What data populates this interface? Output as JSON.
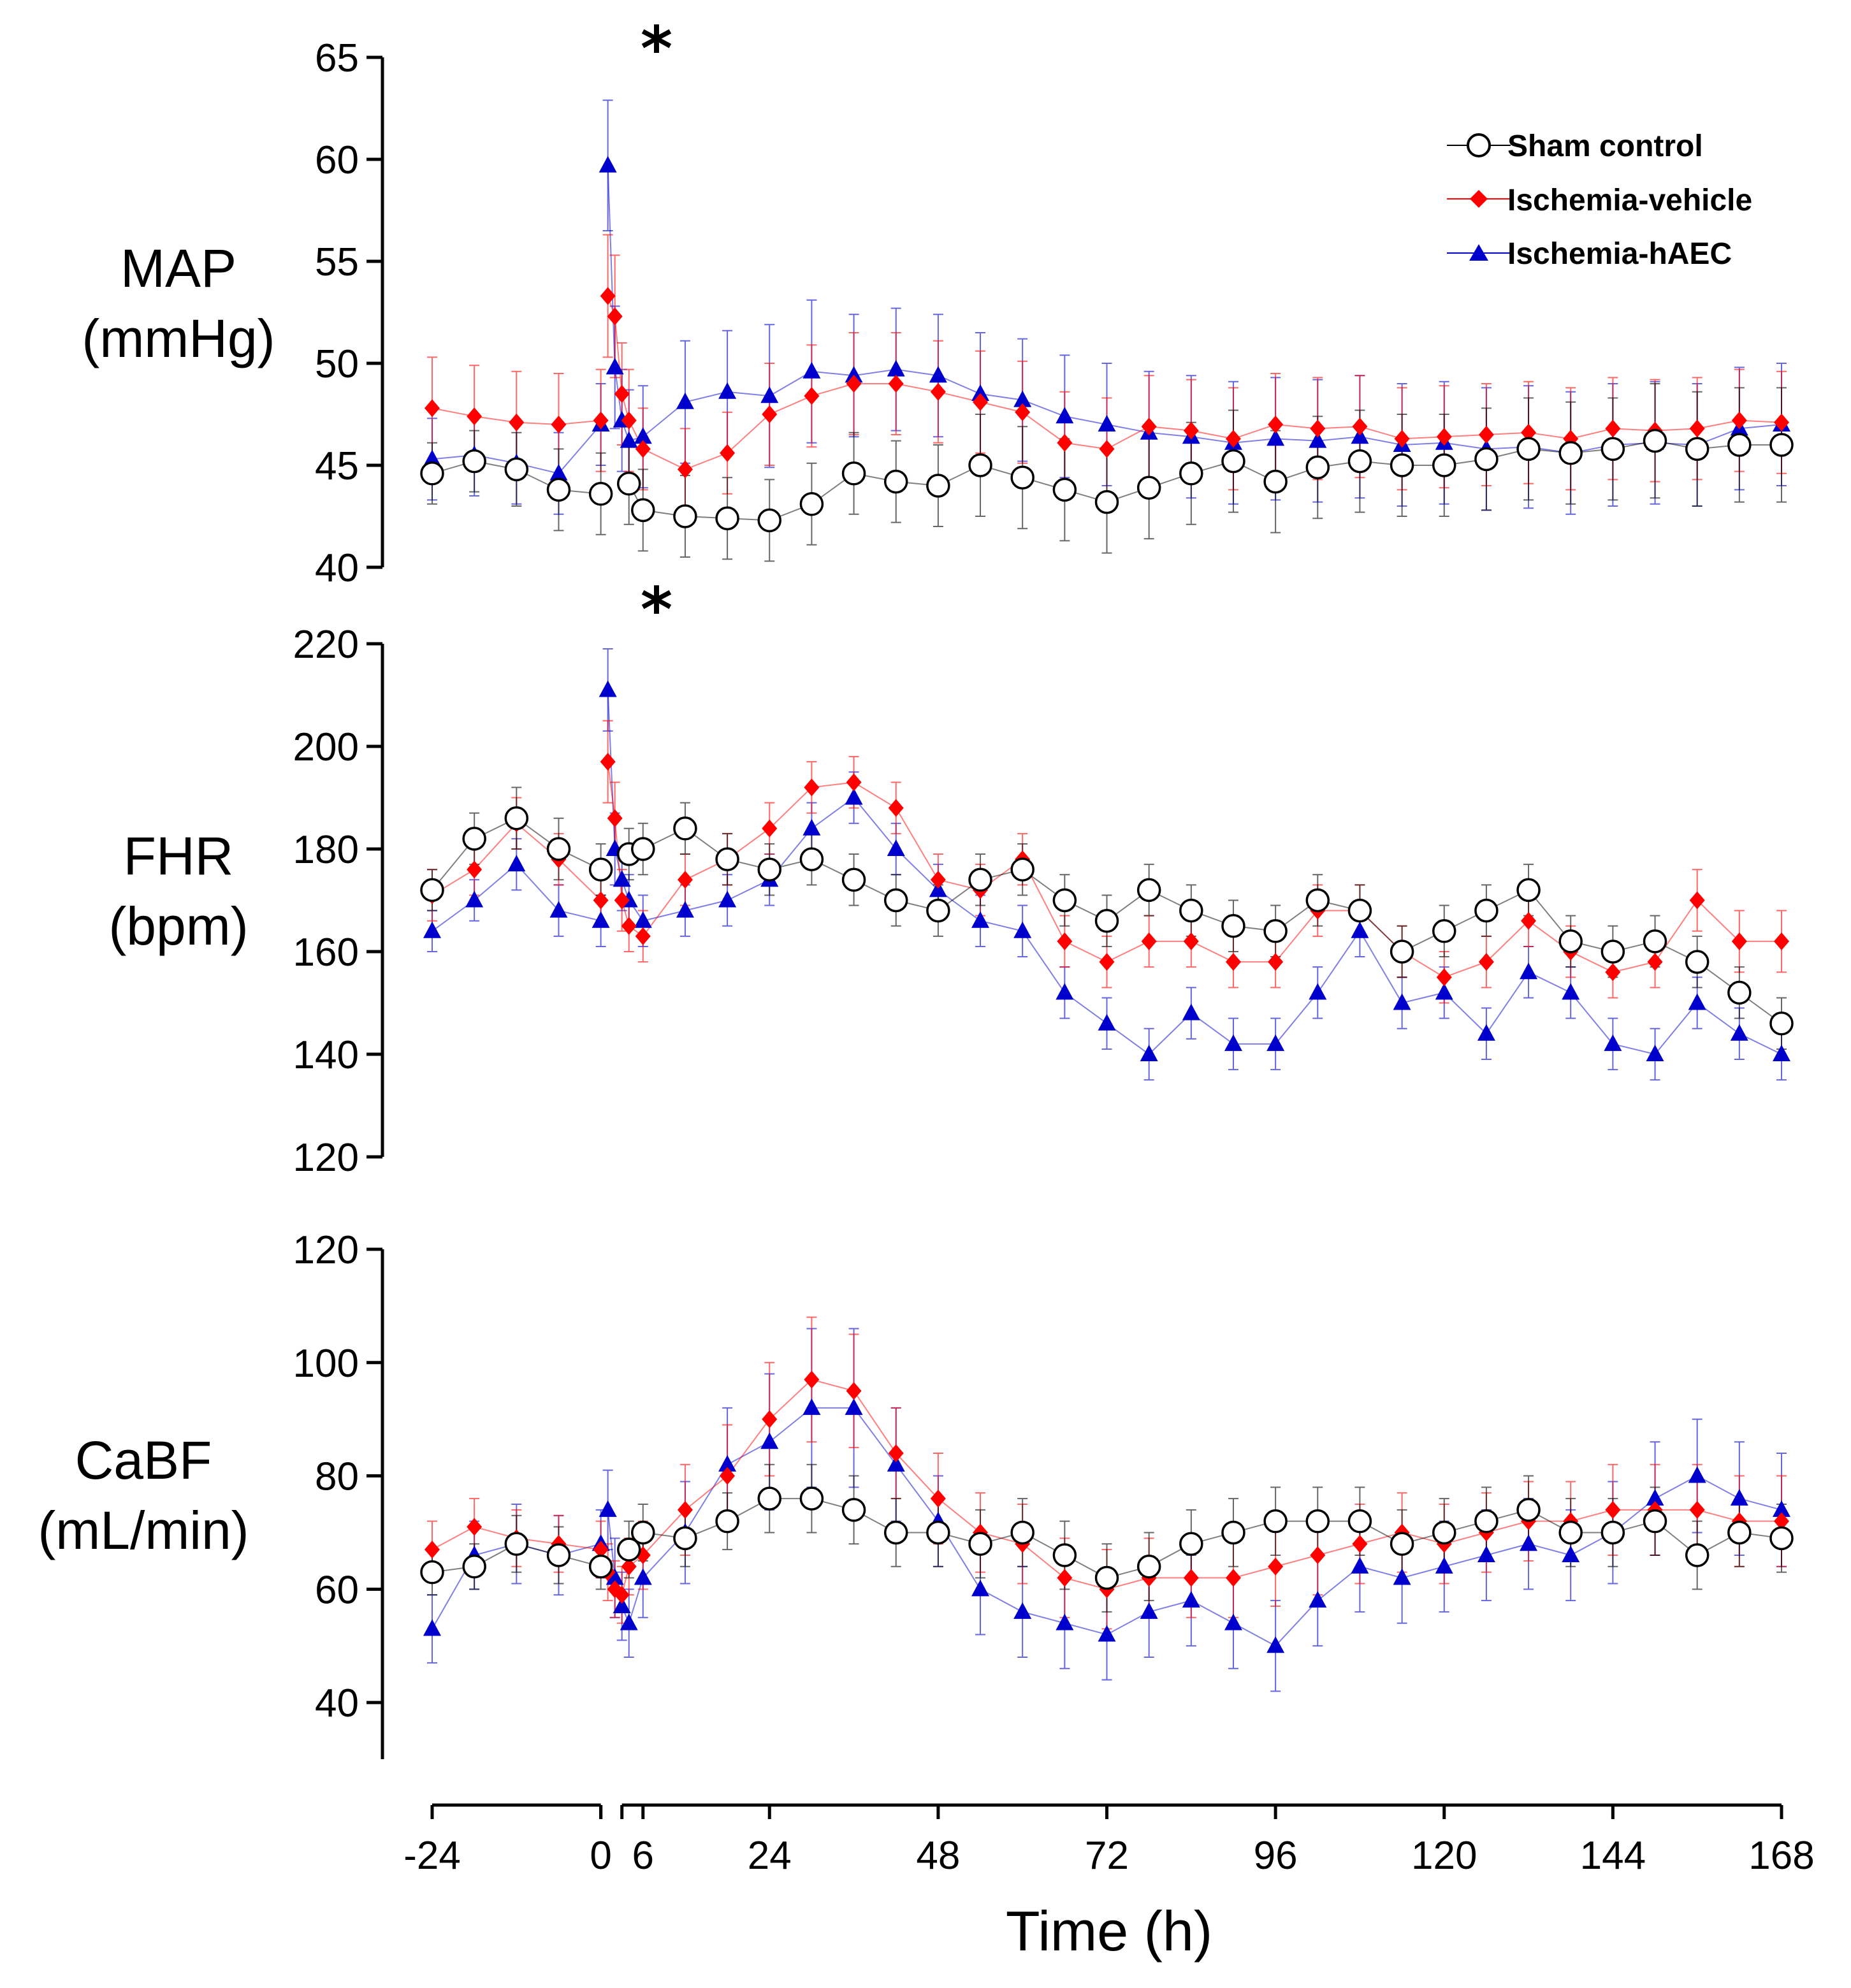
{
  "chart_data": [
    {
      "type": "scatter",
      "id": "map",
      "ylabel_lines": [
        "MAP",
        "(mmHg)"
      ],
      "ylim": [
        40,
        65
      ],
      "yticks": [
        40,
        45,
        50,
        55,
        60,
        65
      ],
      "yticklabels": [
        "40",
        "45",
        "50",
        "55",
        "60",
        "65"
      ],
      "annotation": "*",
      "series": [
        {
          "name": "Sham control",
          "color": "#000000",
          "x": [
            -24,
            -18,
            -12,
            -6,
            0,
            4,
            6,
            12,
            18,
            24,
            30,
            36,
            42,
            48,
            54,
            60,
            66,
            72,
            78,
            84,
            90,
            96,
            102,
            108,
            114,
            120,
            126,
            132,
            138,
            144,
            150,
            156,
            162,
            168
          ],
          "values": [
            44.6,
            45.2,
            44.8,
            43.8,
            43.6,
            44.1,
            42.8,
            42.5,
            42.4,
            42.3,
            43.1,
            44.6,
            44.2,
            44.0,
            45.0,
            44.4,
            43.8,
            43.2,
            43.9,
            44.6,
            45.2,
            44.2,
            44.9,
            45.2,
            45.0,
            45.0,
            45.3,
            45.8,
            45.6,
            45.8,
            46.2,
            45.8,
            46.0,
            46.0
          ],
          "err": [
            1.5,
            1.5,
            1.8,
            2.0,
            2.0,
            2.0,
            2.0,
            2.0,
            2.0,
            2.0,
            2.0,
            2.0,
            2.0,
            2.0,
            2.5,
            2.5,
            2.5,
            2.5,
            2.5,
            2.5,
            2.5,
            2.5,
            2.5,
            2.5,
            2.5,
            2.5,
            2.5,
            2.5,
            2.5,
            2.5,
            2.8,
            2.8,
            2.8,
            2.8
          ]
        },
        {
          "name": "Ischemia-vehicle",
          "color": "#ff0000",
          "x": [
            -24,
            -18,
            -12,
            -6,
            0,
            1,
            2,
            3,
            4,
            6,
            12,
            18,
            24,
            30,
            36,
            42,
            48,
            54,
            60,
            66,
            72,
            78,
            84,
            90,
            96,
            102,
            108,
            114,
            120,
            126,
            132,
            138,
            144,
            150,
            156,
            162,
            168
          ],
          "values": [
            47.8,
            47.4,
            47.1,
            47.0,
            47.2,
            53.3,
            52.3,
            48.5,
            47.2,
            45.8,
            44.8,
            45.6,
            47.5,
            48.4,
            49.0,
            49.0,
            48.6,
            48.1,
            47.6,
            46.1,
            45.8,
            46.9,
            46.7,
            46.3,
            47.0,
            46.8,
            46.9,
            46.3,
            46.4,
            46.5,
            46.6,
            46.3,
            46.8,
            46.7,
            46.8,
            47.2,
            47.1
          ],
          "err": [
            2.5,
            2.5,
            2.5,
            2.5,
            2.5,
            3.0,
            3.0,
            2.5,
            2.5,
            2.0,
            2.0,
            2.0,
            2.5,
            2.5,
            2.5,
            2.5,
            2.5,
            2.5,
            2.5,
            2.5,
            2.5,
            2.5,
            2.5,
            2.5,
            2.5,
            2.5,
            2.5,
            2.5,
            2.5,
            2.5,
            2.5,
            2.5,
            2.5,
            2.5,
            2.5,
            2.5,
            2.5
          ]
        },
        {
          "name": "Ischemia-hAEC",
          "color": "#0000cc",
          "x": [
            -24,
            -18,
            -12,
            -6,
            0,
            1,
            2,
            3,
            4,
            6,
            12,
            18,
            24,
            30,
            36,
            42,
            48,
            54,
            60,
            66,
            72,
            78,
            84,
            90,
            96,
            102,
            108,
            114,
            120,
            126,
            132,
            138,
            144,
            150,
            156,
            162,
            168
          ],
          "values": [
            45.3,
            45.5,
            45.1,
            44.6,
            47.0,
            59.7,
            49.8,
            47.2,
            46.2,
            46.4,
            48.1,
            48.6,
            48.4,
            49.6,
            49.4,
            49.7,
            49.4,
            48.5,
            48.2,
            47.4,
            47.0,
            46.6,
            46.4,
            46.1,
            46.3,
            46.2,
            46.4,
            46.0,
            46.1,
            45.8,
            45.9,
            45.6,
            46.0,
            46.1,
            46.0,
            46.8,
            47.0
          ],
          "err": [
            2.0,
            2.0,
            2.0,
            2.0,
            2.0,
            3.2,
            3.0,
            2.5,
            2.5,
            2.5,
            3.0,
            3.0,
            3.5,
            3.5,
            3.0,
            3.0,
            3.0,
            3.0,
            3.0,
            3.0,
            3.0,
            3.0,
            3.0,
            3.0,
            3.0,
            3.0,
            3.0,
            3.0,
            3.0,
            3.0,
            3.0,
            3.0,
            3.0,
            3.0,
            3.0,
            3.0,
            3.0
          ]
        }
      ]
    },
    {
      "type": "scatter",
      "id": "fhr",
      "ylabel_lines": [
        "FHR",
        "(bpm)"
      ],
      "ylim": [
        120,
        220
      ],
      "yticks": [
        120,
        140,
        160,
        180,
        200,
        220
      ],
      "yticklabels": [
        "120",
        "140",
        "160",
        "180",
        "200",
        "220"
      ],
      "annotation": "*",
      "series": [
        {
          "name": "Sham control",
          "color": "#000000",
          "x": [
            -24,
            -18,
            -12,
            -6,
            0,
            4,
            6,
            12,
            18,
            24,
            30,
            36,
            42,
            48,
            54,
            60,
            66,
            72,
            78,
            84,
            90,
            96,
            102,
            108,
            114,
            120,
            126,
            132,
            138,
            144,
            150,
            156,
            162,
            168
          ],
          "values": [
            172,
            182,
            186,
            180,
            176,
            179,
            180,
            184,
            178,
            176,
            178,
            174,
            170,
            168,
            174,
            176,
            170,
            166,
            172,
            168,
            165,
            164,
            170,
            168,
            160,
            164,
            168,
            172,
            162,
            160,
            162,
            158,
            152,
            146
          ],
          "err": [
            4,
            5,
            6,
            6,
            5,
            5,
            5,
            5,
            5,
            5,
            5,
            5,
            5,
            5,
            5,
            5,
            5,
            5,
            5,
            5,
            5,
            5,
            5,
            5,
            5,
            5,
            5,
            5,
            5,
            5,
            5,
            5,
            5,
            5
          ]
        },
        {
          "name": "Ischemia-vehicle",
          "color": "#ff0000",
          "x": [
            -24,
            -18,
            -12,
            -6,
            0,
            1,
            2,
            3,
            4,
            6,
            12,
            18,
            24,
            30,
            36,
            42,
            48,
            54,
            60,
            66,
            72,
            78,
            84,
            90,
            96,
            102,
            108,
            114,
            120,
            126,
            132,
            138,
            144,
            150,
            156,
            162,
            168
          ],
          "values": [
            171,
            176,
            185,
            178,
            170,
            197,
            186,
            170,
            165,
            163,
            174,
            178,
            184,
            192,
            193,
            188,
            174,
            172,
            178,
            162,
            158,
            162,
            162,
            158,
            158,
            168,
            168,
            160,
            155,
            158,
            166,
            160,
            156,
            158,
            170,
            162,
            162
          ],
          "err": [
            5,
            5,
            5,
            5,
            5,
            8,
            7,
            6,
            5,
            5,
            5,
            5,
            5,
            5,
            5,
            5,
            5,
            5,
            5,
            5,
            5,
            5,
            5,
            5,
            5,
            5,
            5,
            5,
            5,
            5,
            5,
            5,
            5,
            5,
            6,
            6,
            6
          ]
        },
        {
          "name": "Ischemia-hAEC",
          "color": "#0000cc",
          "x": [
            -24,
            -18,
            -12,
            -6,
            0,
            1,
            2,
            3,
            4,
            6,
            12,
            18,
            24,
            30,
            36,
            42,
            48,
            54,
            60,
            66,
            72,
            78,
            84,
            90,
            96,
            102,
            108,
            114,
            120,
            126,
            132,
            138,
            144,
            150,
            156,
            162,
            168
          ],
          "values": [
            164,
            170,
            177,
            168,
            166,
            211,
            180,
            174,
            170,
            166,
            168,
            170,
            174,
            184,
            190,
            180,
            172,
            166,
            164,
            152,
            146,
            140,
            148,
            142,
            142,
            152,
            164,
            150,
            152,
            144,
            156,
            152,
            142,
            140,
            150,
            144,
            140
          ],
          "err": [
            4,
            4,
            5,
            5,
            5,
            8,
            7,
            6,
            5,
            5,
            5,
            5,
            5,
            5,
            5,
            5,
            5,
            5,
            5,
            5,
            5,
            5,
            5,
            5,
            5,
            5,
            5,
            5,
            5,
            5,
            5,
            5,
            5,
            5,
            5,
            5,
            5
          ]
        }
      ]
    },
    {
      "type": "scatter",
      "id": "cabf",
      "ylabel_lines": [
        "CaBF",
        "(mL/min)"
      ],
      "ylim": [
        30,
        120
      ],
      "yticks": [
        40,
        60,
        80,
        100,
        120
      ],
      "yticklabels": [
        "40",
        "60",
        "80",
        "100",
        "120"
      ],
      "annotation": "",
      "series": [
        {
          "name": "Sham control",
          "color": "#000000",
          "x": [
            -24,
            -18,
            -12,
            -6,
            0,
            4,
            6,
            12,
            18,
            24,
            30,
            36,
            42,
            48,
            54,
            60,
            66,
            72,
            78,
            84,
            90,
            96,
            102,
            108,
            114,
            120,
            126,
            132,
            138,
            144,
            150,
            156,
            162,
            168
          ],
          "values": [
            63,
            64,
            68,
            66,
            64,
            67,
            70,
            69,
            72,
            76,
            76,
            74,
            70,
            70,
            68,
            70,
            66,
            62,
            64,
            68,
            70,
            72,
            72,
            72,
            68,
            70,
            72,
            74,
            70,
            70,
            72,
            66,
            70,
            69
          ],
          "err": [
            4,
            4,
            5,
            5,
            4,
            5,
            5,
            5,
            5,
            6,
            6,
            6,
            6,
            6,
            6,
            6,
            6,
            6,
            6,
            6,
            6,
            6,
            6,
            6,
            6,
            6,
            6,
            6,
            6,
            6,
            6,
            6,
            6,
            6
          ]
        },
        {
          "name": "Ischemia-vehicle",
          "color": "#ff0000",
          "x": [
            -24,
            -18,
            -12,
            -6,
            0,
            1,
            2,
            3,
            4,
            6,
            12,
            18,
            24,
            30,
            36,
            42,
            48,
            54,
            60,
            66,
            72,
            78,
            84,
            90,
            96,
            102,
            108,
            114,
            120,
            126,
            132,
            138,
            144,
            150,
            156,
            162,
            168
          ],
          "values": [
            67,
            71,
            69,
            68,
            67,
            63,
            60,
            59,
            64,
            66,
            74,
            80,
            90,
            97,
            95,
            84,
            76,
            70,
            68,
            62,
            60,
            62,
            62,
            62,
            64,
            66,
            68,
            70,
            68,
            70,
            72,
            72,
            74,
            74,
            74,
            72,
            72
          ],
          "err": [
            5,
            5,
            5,
            5,
            5,
            5,
            5,
            5,
            5,
            6,
            8,
            9,
            10,
            11,
            10,
            8,
            8,
            7,
            7,
            7,
            7,
            7,
            7,
            7,
            7,
            7,
            7,
            7,
            7,
            7,
            7,
            7,
            8,
            8,
            8,
            8,
            8
          ]
        },
        {
          "name": "Ischemia-hAEC",
          "color": "#0000cc",
          "x": [
            -24,
            -18,
            -12,
            -6,
            0,
            1,
            2,
            3,
            4,
            6,
            12,
            18,
            24,
            30,
            36,
            42,
            48,
            54,
            60,
            66,
            72,
            78,
            84,
            90,
            96,
            102,
            108,
            114,
            120,
            126,
            132,
            138,
            144,
            150,
            156,
            162,
            168
          ],
          "values": [
            53,
            66,
            68,
            66,
            68,
            74,
            62,
            57,
            54,
            62,
            70,
            82,
            86,
            92,
            92,
            82,
            72,
            60,
            56,
            54,
            52,
            56,
            58,
            54,
            50,
            58,
            64,
            62,
            64,
            66,
            68,
            66,
            70,
            76,
            80,
            76,
            74
          ],
          "err": [
            6,
            6,
            7,
            7,
            6,
            7,
            7,
            6,
            6,
            7,
            9,
            10,
            12,
            14,
            14,
            10,
            8,
            8,
            8,
            8,
            8,
            8,
            8,
            8,
            8,
            8,
            8,
            8,
            8,
            8,
            8,
            8,
            9,
            10,
            10,
            10,
            10
          ]
        }
      ]
    }
  ],
  "legend": {
    "items": [
      {
        "label": "Sham control",
        "marker": "circle-icon",
        "color": "#000000"
      },
      {
        "label": "Ischemia-vehicle",
        "marker": "diamond-icon",
        "color": "#ff0000"
      },
      {
        "label": "Ischemia-hAEC",
        "marker": "triangle-icon",
        "color": "#0000cc"
      }
    ]
  },
  "x_axis": {
    "xlabel": "Time (h)",
    "ticks": [
      -24,
      0,
      6,
      24,
      48,
      72,
      96,
      120,
      144,
      168
    ],
    "ticklabels": [
      "-24",
      "0",
      "6",
      "24",
      "48",
      "72",
      "96",
      "120",
      "144",
      "168"
    ],
    "segments": [
      [
        -24,
        0
      ],
      [
        3,
        168
      ]
    ]
  }
}
